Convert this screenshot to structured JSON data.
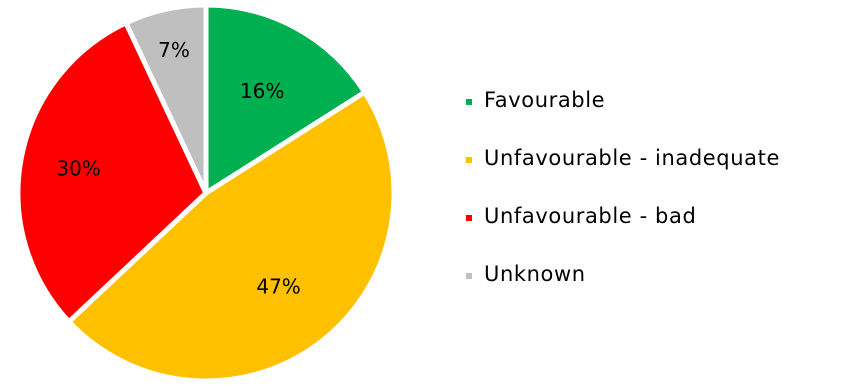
{
  "chart_data": {
    "type": "pie",
    "title": "",
    "slices": [
      {
        "name": "Favourable",
        "value": 16,
        "label": "16%",
        "color": "#00b050"
      },
      {
        "name": "Unfavourable - inadequate",
        "value": 47,
        "label": "47%",
        "color": "#ffc000"
      },
      {
        "name": "Unfavourable - bad",
        "value": 30,
        "label": "30%",
        "color": "#ff0000"
      },
      {
        "name": "Unknown",
        "value": 7,
        "label": "7%",
        "color": "#bfbfbf"
      }
    ],
    "start_angle": "12 o'clock",
    "direction": "clockwise",
    "legend": {
      "placement": "right",
      "entries": [
        {
          "label": "Favourable",
          "color": "#00b050"
        },
        {
          "label": "Unfavourable - inadequate",
          "color": "#ffc000"
        },
        {
          "label": "Unfavourable - bad",
          "color": "#ff0000"
        },
        {
          "label": "Unknown",
          "color": "#bfbfbf"
        }
      ]
    }
  }
}
